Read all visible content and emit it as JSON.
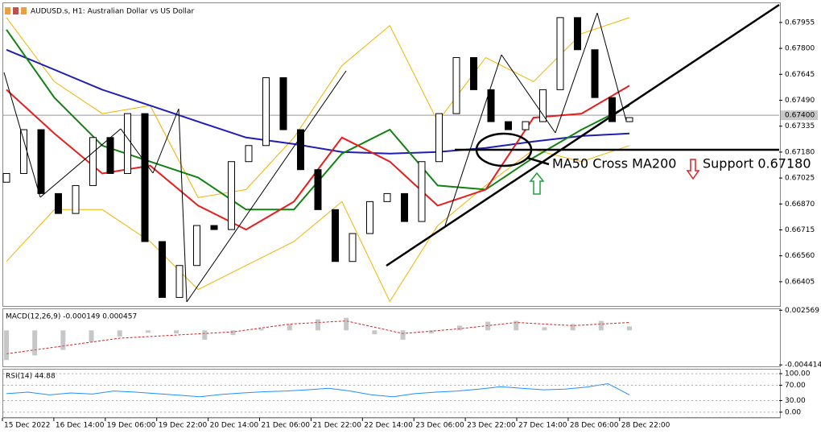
{
  "chart_data": {
    "type": "candlestick",
    "title": "AUDUSD.s, H1:  Australian Dollar vs US Dollar",
    "ylim": [
      0.6626,
      0.6807
    ],
    "yticks": [
      0.67955,
      {
        "value": 0.678,
        "label": "0.67800"
      },
      0.67645,
      {
        "value": 0.6749,
        "label": "0.67490"
      },
      0.67335,
      {
        "value": 0.6718,
        "label": "0.67180"
      },
      0.67025,
      {
        "value": 0.6687,
        "label": "0.66870"
      },
      0.66715,
      {
        "value": 0.6656,
        "label": "0.66560"
      },
      0.66405
    ],
    "price_label": {
      "value": 0.674,
      "label": "0.67400"
    },
    "xticks": [
      "15 Dec 2022",
      "16 Dec 14:00",
      "19 Dec 06:00",
      "19 Dec 22:00",
      "20 Dec 14:00",
      "21 Dec 06:00",
      "21 Dec 22:00",
      "22 Dec 14:00",
      "23 Dec 06:00",
      "23 Dec 22:00",
      "27 Dec 14:00",
      "28 Dec 06:00",
      "28 Dec 22:00"
    ],
    "open": [
      0.67,
      0.67052,
      0.67314,
      0.66932,
      0.66813,
      0.6698,
      0.67267,
      0.67052,
      0.6741,
      0.66645,
      0.66311,
      0.66502,
      0.66741,
      0.66717,
      0.67123,
      0.67219,
      0.67625,
      0.67314,
      0.67075,
      0.66836,
      0.66526,
      0.66693,
      0.66884,
      0.66932,
      0.66765,
      0.67123,
      0.6741,
      0.67745,
      0.67553,
      0.67362,
      0.67314,
      0.67362,
      0.67553,
      0.67984,
      0.67792,
      0.67506,
      0.67362
    ],
    "close": [
      0.67052,
      0.67314,
      0.66932,
      0.66813,
      0.6698,
      0.67267,
      0.67052,
      0.6741,
      0.66645,
      0.66311,
      0.66502,
      0.66741,
      0.66717,
      0.67123,
      0.67219,
      0.67625,
      0.67314,
      0.67075,
      0.66836,
      0.66526,
      0.66693,
      0.66884,
      0.66932,
      0.66765,
      0.67123,
      0.6741,
      0.67745,
      0.67553,
      0.67362,
      0.67314,
      0.67362,
      0.67553,
      0.67984,
      0.67792,
      0.67506,
      0.67362,
      0.67386
    ],
    "series": [
      {
        "color": "#f0b400",
        "values": [
          0.67984,
          0.67601,
          0.6741,
          0.67458,
          0.66908,
          0.66956,
          0.67267,
          0.67697,
          0.67936,
          0.67362,
          0.67745,
          0.67601,
          0.67888,
          0.67984
        ]
      },
      {
        "color": "#f0b400",
        "values": [
          0.66526,
          0.66836,
          0.66836,
          0.66645,
          0.66358,
          0.66502,
          0.66645,
          0.66884,
          0.66287,
          0.66741,
          0.6698,
          0.67195,
          0.67123,
          0.67219
        ]
      },
      {
        "color": "#1e1eb4",
        "values": [
          0.67792,
          0.67673,
          0.67553,
          0.67458,
          0.67362,
          0.67267,
          0.67228,
          0.67181,
          0.67171,
          0.67181,
          0.67205,
          0.67243,
          0.67276,
          0.67291
        ]
      },
      {
        "color": "#128212",
        "values": [
          0.67912,
          0.67506,
          0.67219,
          0.67123,
          0.67028,
          0.66836,
          0.66836,
          0.67171,
          0.67314,
          0.6698,
          0.66956,
          0.67147,
          0.67314,
          0.67458
        ]
      },
      {
        "color": "#e61e1e",
        "values": [
          0.67553,
          0.67291,
          0.67052,
          0.67099,
          0.6686,
          0.66717,
          0.66884,
          0.67267,
          0.67123,
          0.6686,
          0.66956,
          0.67386,
          0.6741,
          0.67577
        ]
      }
    ],
    "annotations": [
      "MA50 Cross MA200",
      "Support 0.67180"
    ],
    "macd": {
      "label": "MACD(12,26,9) -0.000149 0.000457",
      "ylim": [
        -0.0046,
        0.0027
      ],
      "yticks": [
        0.002569,
        -0.004414
      ],
      "histogram": [
        -0.0038,
        -0.0032,
        -0.0025,
        -0.0015,
        -0.0008,
        -0.0003,
        -0.0004,
        -0.0012,
        -0.0006,
        0.0002,
        0.0008,
        0.0014,
        0.0016,
        -0.0005,
        -0.0012,
        -0.0004,
        0.0006,
        0.0011,
        0.0012,
        0.0004,
        0.0008,
        0.0012,
        0.0005
      ],
      "signal": [
        -0.003,
        -0.002,
        -0.001,
        -0.0006,
        -0.0002,
        0.0008,
        0.0012,
        -0.0004,
        0.0002,
        0.001,
        0.0006,
        0.001
      ],
      "color": "#d22020"
    },
    "rsi": {
      "label": "RSI(14) 44.88",
      "ylim": [
        -12.8,
        110.6
      ],
      "yticks": [
        {
          "value": 100,
          "label": "100.00"
        },
        {
          "value": 70,
          "label": "70.00"
        },
        {
          "value": 30,
          "label": "30.00"
        },
        {
          "value": 0,
          "label": "0.00"
        }
      ],
      "values": [
        48,
        52,
        45,
        50,
        47,
        55,
        52,
        48,
        44,
        40,
        46,
        50,
        53,
        55,
        58,
        62,
        55,
        45,
        40,
        48,
        52,
        55,
        60,
        66,
        62,
        58,
        60,
        65,
        74,
        44.88
      ],
      "color": "#1e90ff"
    }
  }
}
